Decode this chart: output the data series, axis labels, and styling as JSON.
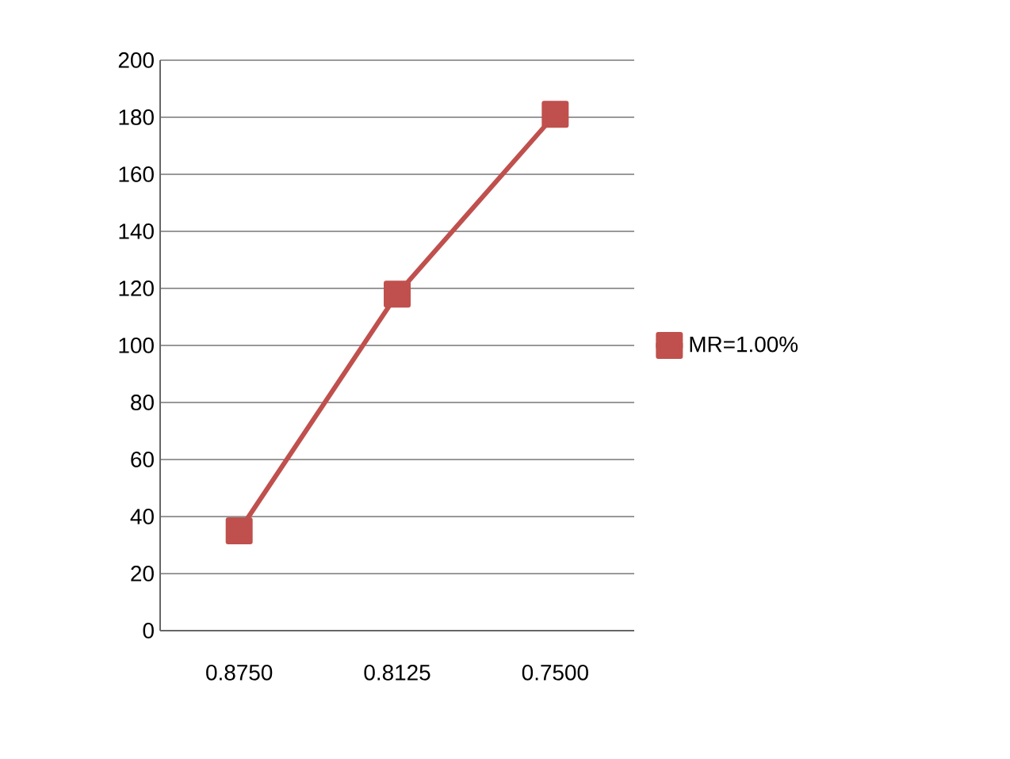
{
  "chart_data": {
    "type": "line",
    "categories": [
      "0.8750",
      "0.8125",
      "0.7500"
    ],
    "series": [
      {
        "name": "MR=1.00%",
        "color": "#c0504d",
        "values": [
          35,
          118,
          181
        ]
      }
    ],
    "ylim": [
      0,
      200
    ],
    "yticks": [
      0,
      20,
      40,
      60,
      80,
      100,
      120,
      140,
      160,
      180,
      200
    ],
    "grid": "y",
    "legend": "right",
    "marker": "square",
    "line_style": "solid"
  }
}
